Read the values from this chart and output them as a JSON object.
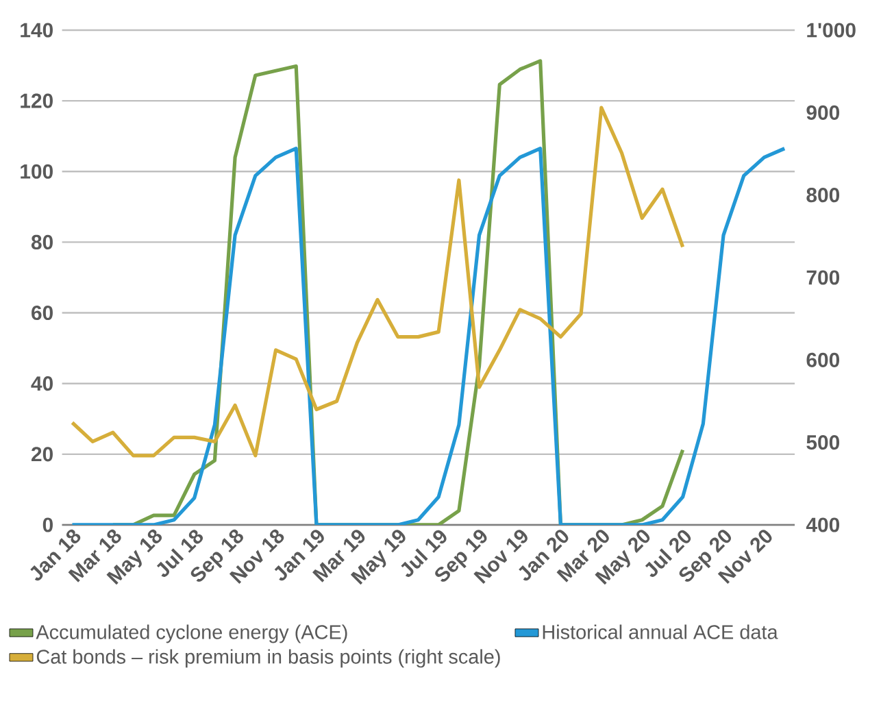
{
  "chart_data": {
    "type": "line",
    "categories": [
      "Jan 18",
      null,
      "Mar 18",
      null,
      "May 18",
      null,
      "Jul 18",
      null,
      "Sep 18",
      null,
      "Nov 18",
      null,
      "Jan 19",
      null,
      "Mar 19",
      null,
      "May 19",
      null,
      "Jul 19",
      null,
      "Sep 19",
      null,
      "Nov 19",
      null,
      "Jan 20",
      null,
      "Mar 20",
      null,
      "May 20",
      null,
      "Jul 20",
      null,
      "Sep 20",
      null,
      "Nov 20",
      null
    ],
    "series": [
      {
        "name": "Accumulated cyclone energy (ACE)",
        "color": "#77a14a",
        "values": [
          null,
          null,
          0,
          0,
          2.7,
          2.7,
          14.3,
          18.2,
          104,
          127.2,
          128.5,
          129.8,
          0,
          0,
          0,
          0,
          0,
          0,
          0,
          4,
          45,
          124.6,
          128.9,
          131.3,
          0,
          0,
          0,
          0,
          1.4,
          5.3,
          21.2,
          null,
          null,
          null,
          null,
          null
        ]
      },
      {
        "name": "Historical annual ACE data",
        "color": "#2398d6",
        "values": [
          0,
          0,
          0,
          0,
          0,
          1.4,
          7.6,
          28.3,
          82,
          98.8,
          104,
          106.5,
          0,
          0,
          0,
          0,
          0,
          1.4,
          7.9,
          28.3,
          82,
          98.8,
          104,
          106.5,
          0,
          0,
          0,
          0,
          0,
          1.4,
          7.9,
          28.6,
          82,
          98.8,
          104,
          106.5
        ]
      },
      {
        "name": "Cat bonds – risk premium in basis points (right scale)",
        "color": "#d6ae3a",
        "axis": "y2",
        "values": [
          524,
          501,
          512,
          484,
          484,
          506,
          506,
          501,
          545,
          484,
          612,
          601,
          540,
          550,
          621,
          673,
          628,
          628,
          634,
          818,
          567,
          612,
          661,
          650,
          628,
          656,
          906,
          851,
          772,
          807,
          737,
          null,
          null,
          null,
          null,
          null
        ]
      }
    ],
    "ylim": [
      0,
      140
    ],
    "yticks": [
      0,
      20,
      40,
      60,
      80,
      100,
      120,
      140
    ],
    "y2lim": [
      400,
      1000
    ],
    "y2ticks": [
      400,
      500,
      600,
      700,
      800,
      900,
      {
        "value": 1000,
        "label": "1'000"
      }
    ],
    "grid": "y",
    "legend": "bottom"
  }
}
